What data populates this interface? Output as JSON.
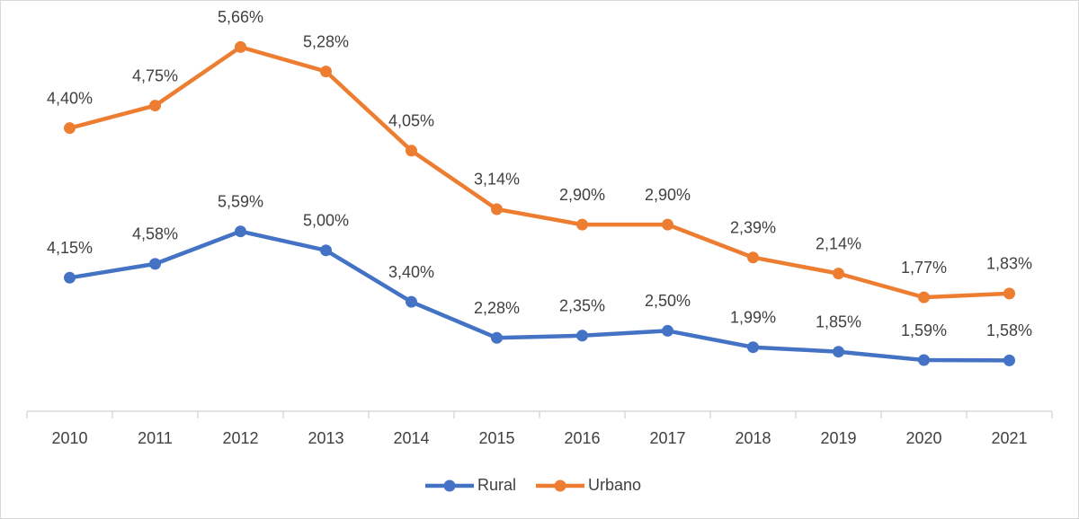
{
  "chart_data": {
    "type": "line",
    "categories": [
      "2010",
      "2011",
      "2012",
      "2013",
      "2014",
      "2015",
      "2016",
      "2017",
      "2018",
      "2019",
      "2020",
      "2021"
    ],
    "series": [
      {
        "name": "Rural",
        "color": "#4472c4",
        "axis": "y2",
        "values": [
          4.15,
          4.58,
          5.59,
          5.0,
          3.4,
          2.28,
          2.35,
          2.5,
          1.99,
          1.85,
          1.59,
          1.58
        ],
        "value_labels": [
          "4,15%",
          "4,58%",
          "5,59%",
          "5,00%",
          "3,40%",
          "2,28%",
          "2,35%",
          "2,50%",
          "1,99%",
          "1,85%",
          "1,59%",
          "1,58%"
        ]
      },
      {
        "name": "Urbano",
        "color": "#ed7d31",
        "values": [
          4.4,
          4.75,
          5.66,
          5.28,
          4.05,
          3.14,
          2.9,
          2.9,
          2.39,
          2.14,
          1.77,
          1.83
        ],
        "value_labels": [
          "4,40%",
          "4,75%",
          "5,66%",
          "5,28%",
          "4,05%",
          "3,14%",
          "2,90%",
          "2,90%",
          "2,39%",
          "2,14%",
          "1,77%",
          "1,83%"
        ]
      }
    ],
    "ylim": [
      0,
      6
    ],
    "y2lim": [
      0,
      12
    ],
    "legend": "bottom"
  }
}
